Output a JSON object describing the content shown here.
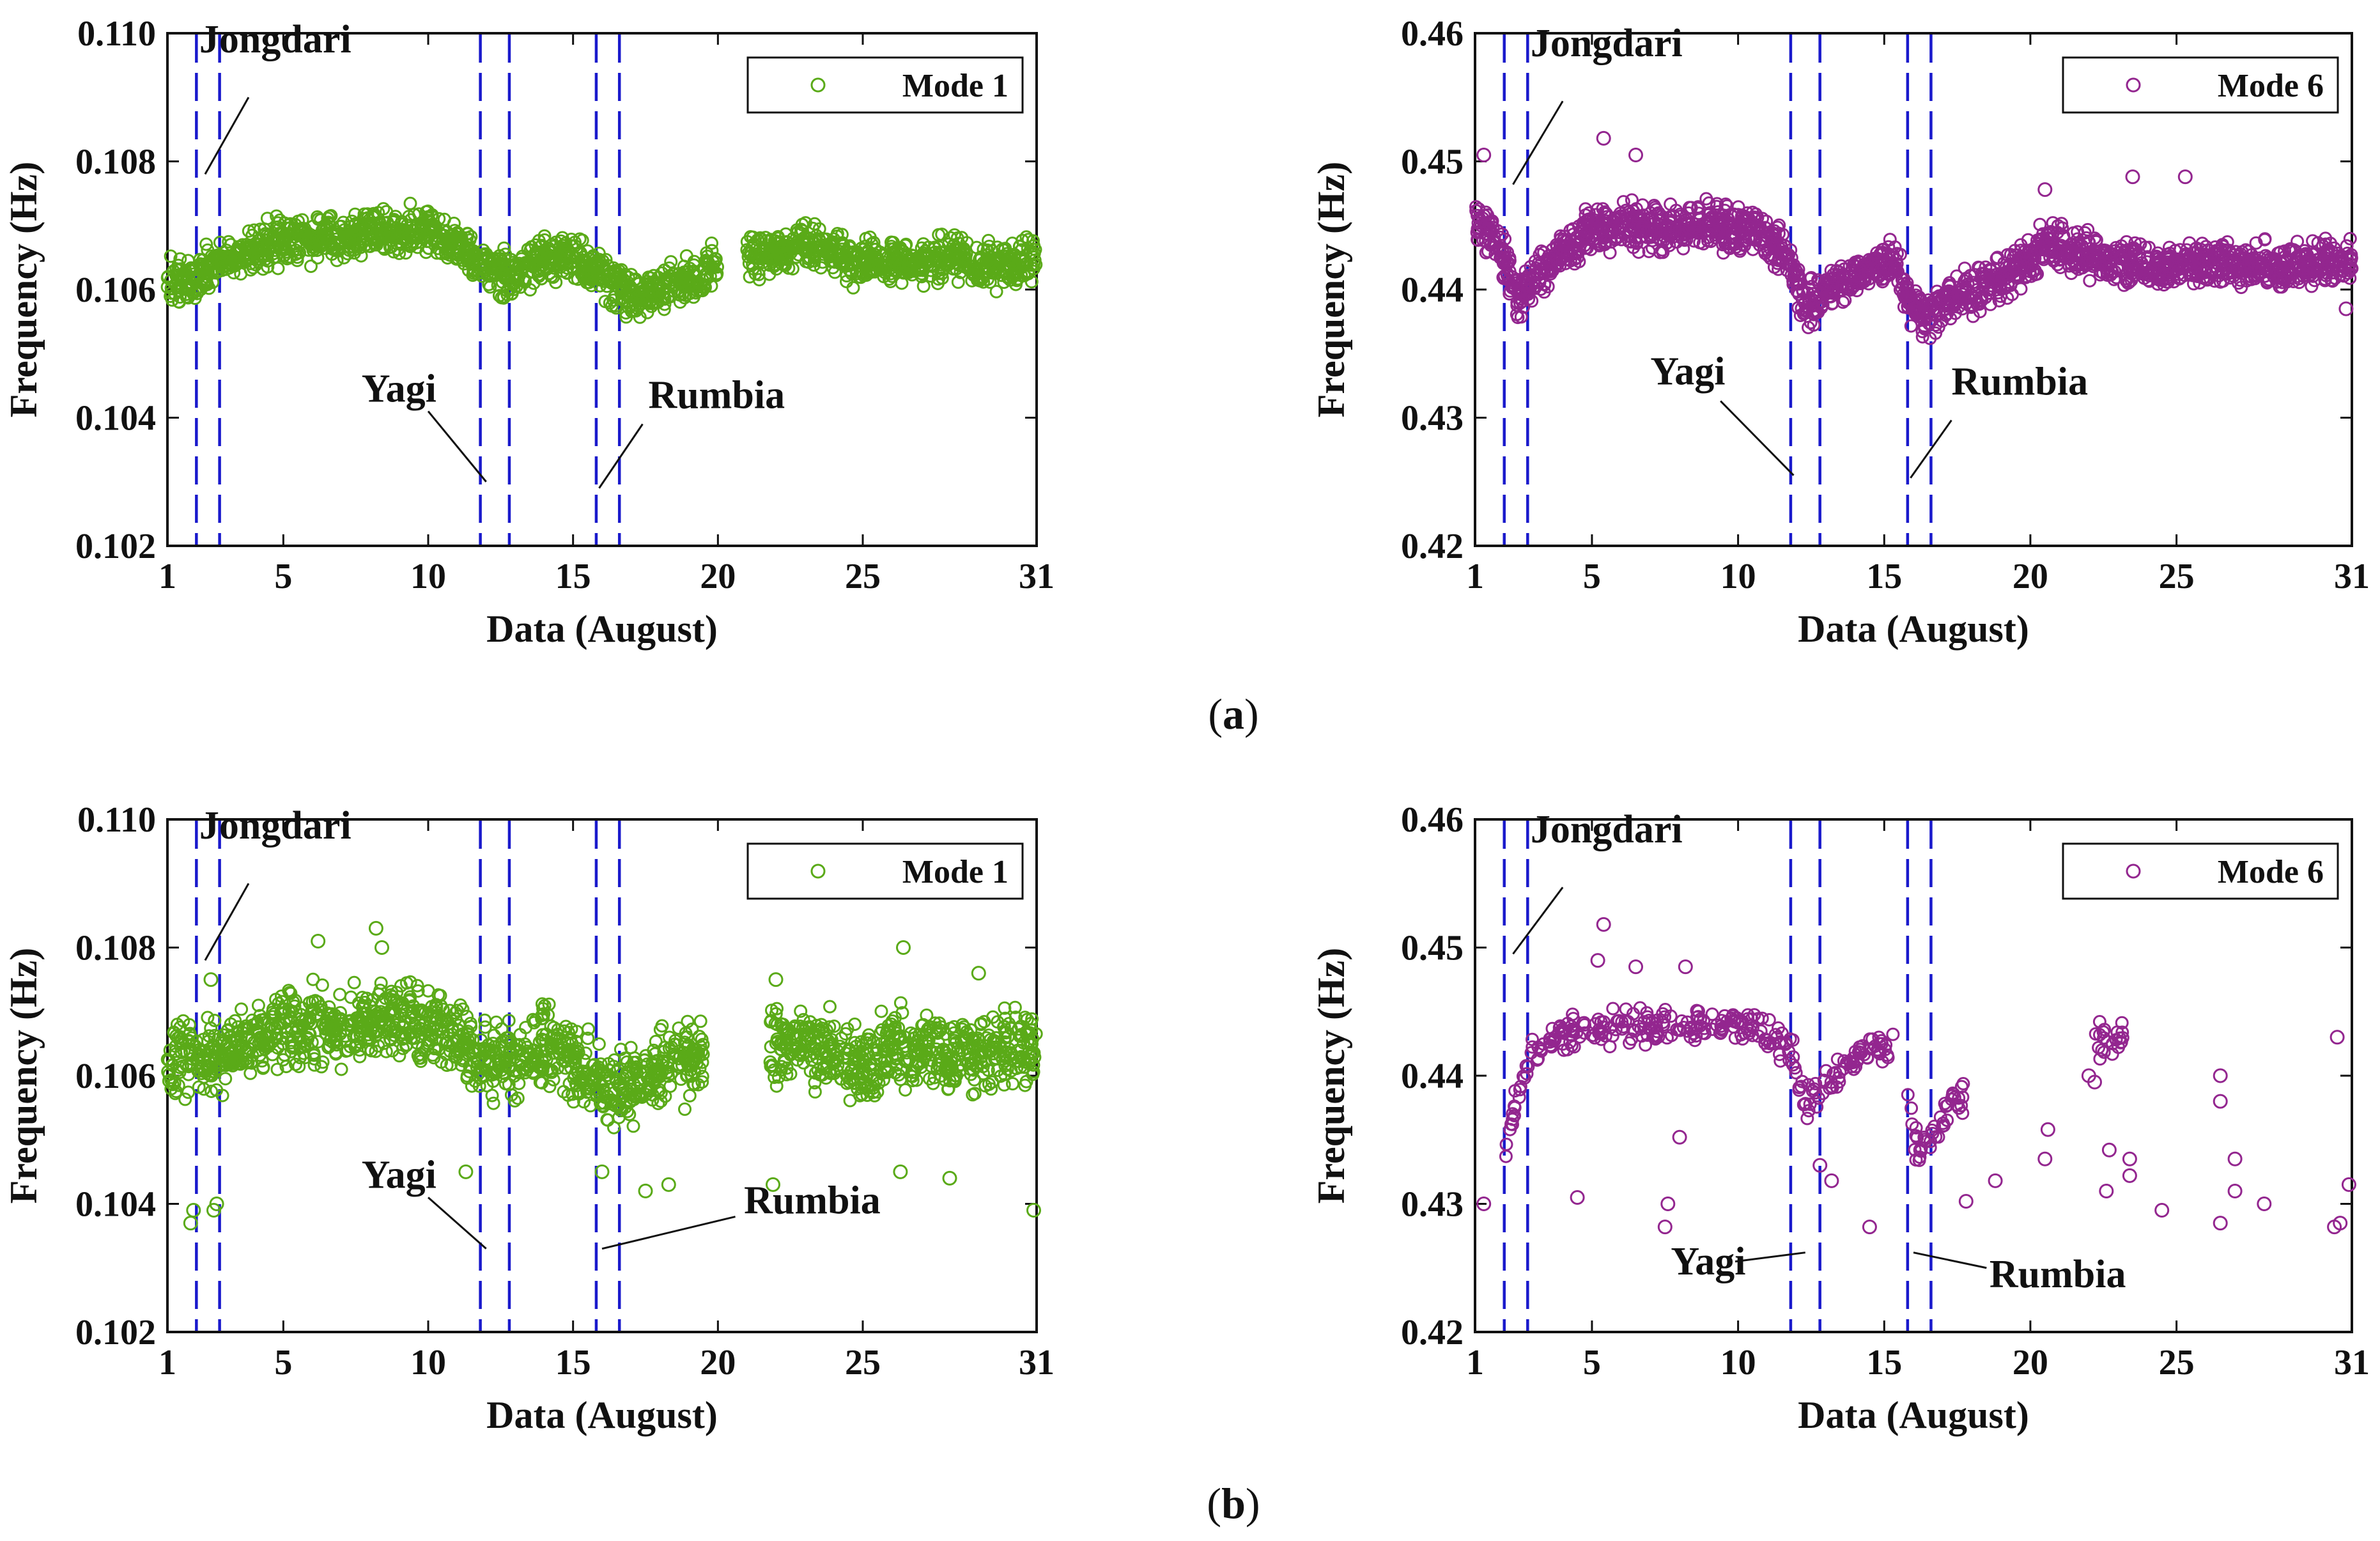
{
  "figure": {
    "caption_a": "a",
    "caption_b": "b"
  },
  "colors": {
    "mode1": "#5aaa18",
    "mode6": "#93268f",
    "event_line": "#1a1acc",
    "axis": "#111111"
  },
  "chart_data": [
    {
      "id": "a-mode1",
      "type": "scatter",
      "row": "a",
      "legend": "Mode 1",
      "xlabel": "Data (August)",
      "ylabel": "Frequency (Hz)",
      "xlim": [
        1,
        31
      ],
      "ylim": [
        0.102,
        0.11
      ],
      "xticks": [
        1,
        5,
        10,
        15,
        20,
        25,
        31
      ],
      "yticks": [
        0.102,
        0.104,
        0.106,
        0.108,
        0.11
      ],
      "ytick_labels": [
        "0.102",
        "0.104",
        "0.106",
        "0.108",
        "0.110"
      ],
      "color_key": "mode1",
      "event_lines_x": [
        2.0,
        2.8,
        11.8,
        12.8,
        15.8,
        16.6
      ],
      "annotations": [
        {
          "text": "Jongdari",
          "x": 2.1,
          "y": 0.1097,
          "ptr": [
            [
              3.8,
              0.109
            ],
            [
              2.3,
              0.1078
            ]
          ]
        },
        {
          "text": "Yagi",
          "x": 7.7,
          "y": 0.10425,
          "ptr": [
            [
              10.0,
              0.1041
            ],
            [
              12.0,
              0.103
            ]
          ]
        },
        {
          "text": "Rumbia",
          "x": 17.6,
          "y": 0.10415,
          "ptr": [
            [
              17.4,
              0.1039
            ],
            [
              15.9,
              0.1029
            ]
          ]
        }
      ],
      "series": [
        {
          "name": "Mode 1",
          "sparse": false,
          "segments": [
            {
              "x": [
                1,
                2.0,
                2.8,
                4,
                5,
                6,
                7,
                8,
                9,
                10,
                11,
                11.8,
                12.8,
                14,
                15,
                15.8,
                16.6,
                17.5,
                18.5,
                19.5,
                20
              ],
              "y": [
                0.1061,
                0.1062,
                0.1064,
                0.1066,
                0.1068,
                0.1068,
                0.1068,
                0.1069,
                0.1069,
                0.1069,
                0.1067,
                0.1064,
                0.1062,
                0.1065,
                0.1065,
                0.1063,
                0.106,
                0.1059,
                0.1061,
                0.1062,
                0.1064
              ]
            },
            {
              "x": [
                21,
                22,
                23,
                24,
                25,
                26,
                27,
                28,
                29,
                30,
                31
              ],
              "y": [
                0.1065,
                0.1066,
                0.1067,
                0.1066,
                0.1064,
                0.1065,
                0.1064,
                0.1065,
                0.1064,
                0.1064,
                0.1065
              ]
            }
          ],
          "scatter": 0.0003,
          "outliers": []
        }
      ]
    },
    {
      "id": "a-mode6",
      "type": "scatter",
      "row": "a",
      "legend": "Mode 6",
      "xlabel": "Data (August)",
      "ylabel": "Frequency (Hz)",
      "xlim": [
        1,
        31
      ],
      "ylim": [
        0.42,
        0.46
      ],
      "xticks": [
        1,
        5,
        10,
        15,
        20,
        25,
        31
      ],
      "yticks": [
        0.42,
        0.43,
        0.44,
        0.45,
        0.46
      ],
      "ytick_labels": [
        "0.42",
        "0.43",
        "0.44",
        "0.45",
        "0.46"
      ],
      "color_key": "mode6",
      "event_lines_x": [
        2.0,
        2.8,
        11.8,
        12.8,
        15.8,
        16.6
      ],
      "annotations": [
        {
          "text": "Jongdari",
          "x": 2.9,
          "y": 0.4582,
          "ptr": [
            [
              4.0,
              0.4547
            ],
            [
              2.3,
              0.4482
            ]
          ]
        },
        {
          "text": "Yagi",
          "x": 7.0,
          "y": 0.4326,
          "ptr": [
            [
              9.4,
              0.4313
            ],
            [
              11.9,
              0.4255
            ]
          ]
        },
        {
          "text": "Rumbia",
          "x": 17.3,
          "y": 0.4318,
          "ptr": [
            [
              17.3,
              0.4298
            ],
            [
              15.9,
              0.4253
            ]
          ]
        }
      ],
      "series": [
        {
          "name": "Mode 6",
          "sparse": false,
          "segments": [
            {
              "x": [
                1,
                1.5,
                2.0,
                2.5,
                3.0,
                4,
                5,
                6,
                7,
                8,
                9,
                10,
                11,
                11.8,
                12.3,
                12.8,
                13.5,
                14.5,
                15.3,
                15.8,
                16.3,
                16.8,
                17.5,
                18.5,
                19.5,
                20.5,
                21.5,
                22.5,
                23.5,
                24.5,
                25.5,
                26.5,
                27.5,
                28.5,
                29.5,
                30.5,
                31
              ],
              "y": [
                0.4455,
                0.4445,
                0.4425,
                0.439,
                0.441,
                0.443,
                0.4448,
                0.445,
                0.4448,
                0.445,
                0.445,
                0.4445,
                0.444,
                0.442,
                0.4385,
                0.4395,
                0.4405,
                0.442,
                0.442,
                0.4395,
                0.438,
                0.4385,
                0.4395,
                0.4405,
                0.4415,
                0.4435,
                0.443,
                0.442,
                0.4418,
                0.4415,
                0.442,
                0.442,
                0.4418,
                0.4418,
                0.442,
                0.4422,
                0.4425
              ]
            }
          ],
          "scatter": 0.0015,
          "outliers": [
            {
              "x": 1.3,
              "y": 0.4505
            },
            {
              "x": 5.4,
              "y": 0.4518
            },
            {
              "x": 6.5,
              "y": 0.4505
            },
            {
              "x": 23.5,
              "y": 0.4488
            },
            {
              "x": 25.3,
              "y": 0.4488
            },
            {
              "x": 20.5,
              "y": 0.4478
            },
            {
              "x": 30.8,
              "y": 0.4385
            }
          ]
        }
      ]
    },
    {
      "id": "b-mode1",
      "type": "scatter",
      "row": "b",
      "legend": "Mode 1",
      "xlabel": "Data (August)",
      "ylabel": "Frequency (Hz)",
      "xlim": [
        1,
        31
      ],
      "ylim": [
        0.102,
        0.11
      ],
      "xticks": [
        1,
        5,
        10,
        15,
        20,
        25,
        31
      ],
      "yticks": [
        0.102,
        0.104,
        0.106,
        0.108,
        0.11
      ],
      "ytick_labels": [
        "0.102",
        "0.104",
        "0.106",
        "0.108",
        "0.110"
      ],
      "color_key": "mode1",
      "event_lines_x": [
        2.0,
        2.8,
        11.8,
        12.8,
        15.8,
        16.6
      ],
      "annotations": [
        {
          "text": "Jongdari",
          "x": 2.1,
          "y": 0.1097,
          "ptr": [
            [
              3.8,
              0.109
            ],
            [
              2.3,
              0.1078
            ]
          ]
        },
        {
          "text": "Yagi",
          "x": 7.7,
          "y": 0.10425,
          "ptr": [
            [
              10.0,
              0.1041
            ],
            [
              12.0,
              0.1033
            ]
          ]
        },
        {
          "text": "Rumbia",
          "x": 20.9,
          "y": 0.10385,
          "ptr": [
            [
              20.6,
              0.1038
            ],
            [
              16.0,
              0.1033
            ]
          ]
        }
      ],
      "series": [
        {
          "name": "Mode 1",
          "sparse": false,
          "segments": [
            {
              "x": [
                1,
                1.8,
                2.8,
                4,
                5,
                6,
                7,
                8,
                9,
                10,
                11,
                11.8,
                12.8,
                14,
                15,
                15.8,
                16.6,
                17.5,
                18.5,
                19.5
              ],
              "y": [
                0.1061,
                0.1063,
                0.1063,
                0.1066,
                0.1068,
                0.1068,
                0.1067,
                0.1068,
                0.1069,
                0.1068,
                0.1067,
                0.1062,
                0.1062,
                0.1065,
                0.1063,
                0.106,
                0.1057,
                0.106,
                0.1062,
                0.1063
              ]
            },
            {
              "x": [
                21.8,
                23,
                24,
                25,
                26,
                27,
                28,
                29,
                30,
                31
              ],
              "y": [
                0.1064,
                0.1065,
                0.1063,
                0.1062,
                0.1064,
                0.1064,
                0.1063,
                0.1064,
                0.1064,
                0.1065
              ]
            }
          ],
          "scatter": 0.0005,
          "outliers": [
            {
              "x": 1.8,
              "y": 0.1037
            },
            {
              "x": 1.9,
              "y": 0.1039
            },
            {
              "x": 2.6,
              "y": 0.1039
            },
            {
              "x": 2.7,
              "y": 0.104
            },
            {
              "x": 2.5,
              "y": 0.1075
            },
            {
              "x": 6.2,
              "y": 0.1081
            },
            {
              "x": 8.2,
              "y": 0.1083
            },
            {
              "x": 8.4,
              "y": 0.108
            },
            {
              "x": 26.4,
              "y": 0.108
            },
            {
              "x": 22.0,
              "y": 0.1075
            },
            {
              "x": 29.0,
              "y": 0.1076
            },
            {
              "x": 30.9,
              "y": 0.1039
            },
            {
              "x": 11.3,
              "y": 0.1045
            },
            {
              "x": 16.0,
              "y": 0.1045
            },
            {
              "x": 17.5,
              "y": 0.1042
            },
            {
              "x": 18.3,
              "y": 0.1043
            },
            {
              "x": 21.9,
              "y": 0.1043
            },
            {
              "x": 26.3,
              "y": 0.1045
            },
            {
              "x": 28.0,
              "y": 0.1044
            }
          ]
        }
      ]
    },
    {
      "id": "b-mode6",
      "type": "scatter",
      "row": "b",
      "legend": "Mode 6",
      "xlabel": "Data (August)",
      "ylabel": "Frequency (Hz)",
      "xlim": [
        1,
        31
      ],
      "ylim": [
        0.42,
        0.46
      ],
      "xticks": [
        1,
        5,
        10,
        15,
        20,
        25,
        31
      ],
      "yticks": [
        0.42,
        0.43,
        0.44,
        0.45,
        0.46
      ],
      "ytick_labels": [
        "0.42",
        "0.43",
        "0.44",
        "0.45",
        "0.46"
      ],
      "color_key": "mode6",
      "event_lines_x": [
        2.0,
        2.8,
        11.8,
        12.8,
        15.8,
        16.6
      ],
      "annotations": [
        {
          "text": "Jongdari",
          "x": 2.9,
          "y": 0.4582,
          "ptr": [
            [
              4.0,
              0.4547
            ],
            [
              2.3,
              0.4495
            ]
          ]
        },
        {
          "text": "Yagi",
          "x": 7.7,
          "y": 0.4245,
          "ptr": [
            [
              9.9,
              0.4255
            ],
            [
              12.3,
              0.4262
            ]
          ]
        },
        {
          "text": "Rumbia",
          "x": 18.6,
          "y": 0.4235,
          "ptr": [
            [
              18.5,
              0.425
            ],
            [
              16.0,
              0.4262
            ]
          ]
        }
      ],
      "series": [
        {
          "name": "Mode 6",
          "sparse": true,
          "segments": [
            {
              "x": [
                2.0,
                2.5,
                3.0,
                4,
                5,
                6,
                7,
                8,
                9,
                10,
                11,
                11.8,
                12.3,
                12.8,
                13.5,
                14.5,
                15.3
              ],
              "y": [
                0.434,
                0.439,
                0.442,
                0.443,
                0.444,
                0.444,
                0.4438,
                0.444,
                0.4442,
                0.444,
                0.4435,
                0.442,
                0.438,
                0.4385,
                0.4405,
                0.442,
                0.442
              ]
            },
            {
              "x": [
                15.8,
                16.2,
                16.6,
                17.2,
                17.8
              ],
              "y": [
                0.437,
                0.434,
                0.435,
                0.4375,
                0.4385
              ]
            },
            {
              "x": [
                22.2,
                22.7,
                23.2
              ],
              "y": [
                0.4425,
                0.4425,
                0.443
              ]
            }
          ],
          "scatter": 0.0012,
          "outliers": [
            {
              "x": 1.3,
              "y": 0.43
            },
            {
              "x": 4.5,
              "y": 0.4305
            },
            {
              "x": 5.4,
              "y": 0.4518
            },
            {
              "x": 5.2,
              "y": 0.449
            },
            {
              "x": 6.5,
              "y": 0.4485
            },
            {
              "x": 7.5,
              "y": 0.4282
            },
            {
              "x": 7.6,
              "y": 0.43
            },
            {
              "x": 8.0,
              "y": 0.4352
            },
            {
              "x": 8.2,
              "y": 0.4485
            },
            {
              "x": 14.5,
              "y": 0.4282
            },
            {
              "x": 13.2,
              "y": 0.4318
            },
            {
              "x": 12.8,
              "y": 0.433
            },
            {
              "x": 18.8,
              "y": 0.4318
            },
            {
              "x": 17.8,
              "y": 0.4302
            },
            {
              "x": 20.5,
              "y": 0.4335
            },
            {
              "x": 20.6,
              "y": 0.4358
            },
            {
              "x": 22.0,
              "y": 0.44
            },
            {
              "x": 22.2,
              "y": 0.4395
            },
            {
              "x": 22.7,
              "y": 0.4342
            },
            {
              "x": 22.6,
              "y": 0.431
            },
            {
              "x": 23.4,
              "y": 0.4335
            },
            {
              "x": 23.4,
              "y": 0.4322
            },
            {
              "x": 24.5,
              "y": 0.4295
            },
            {
              "x": 26.5,
              "y": 0.44
            },
            {
              "x": 26.5,
              "y": 0.438
            },
            {
              "x": 26.5,
              "y": 0.4285
            },
            {
              "x": 27.0,
              "y": 0.4335
            },
            {
              "x": 27.0,
              "y": 0.431
            },
            {
              "x": 28.0,
              "y": 0.43
            },
            {
              "x": 30.5,
              "y": 0.443
            },
            {
              "x": 30.4,
              "y": 0.4282
            },
            {
              "x": 30.9,
              "y": 0.4315
            },
            {
              "x": 30.6,
              "y": 0.4285
            }
          ]
        }
      ]
    }
  ]
}
